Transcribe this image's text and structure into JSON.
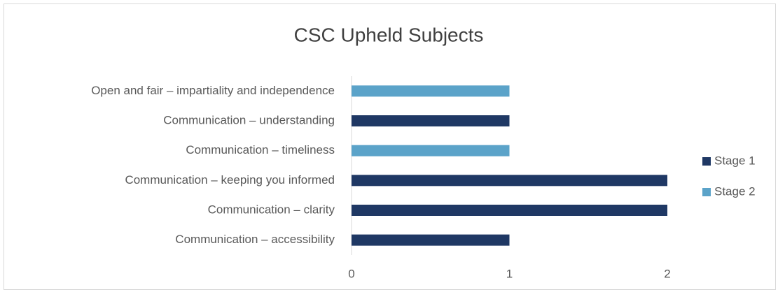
{
  "chart_data": {
    "type": "bar",
    "orientation": "horizontal",
    "title": "CSC Upheld Subjects",
    "categories": [
      "Open and fair – impartiality and independence",
      "Communication – understanding",
      "Communication – timeliness",
      "Communication – keeping you informed",
      "Communication – clarity",
      "Communication – accessibility"
    ],
    "series": [
      {
        "name": "Stage 1",
        "color": "#1f3864",
        "values": [
          null,
          1,
          null,
          2,
          2,
          1
        ]
      },
      {
        "name": "Stage 2",
        "color": "#5ba3c9",
        "values": [
          1,
          null,
          1,
          null,
          null,
          null
        ]
      }
    ],
    "xlim": [
      0,
      2
    ],
    "xticks": [
      0,
      1,
      2
    ],
    "grid": false,
    "legend": "right"
  }
}
